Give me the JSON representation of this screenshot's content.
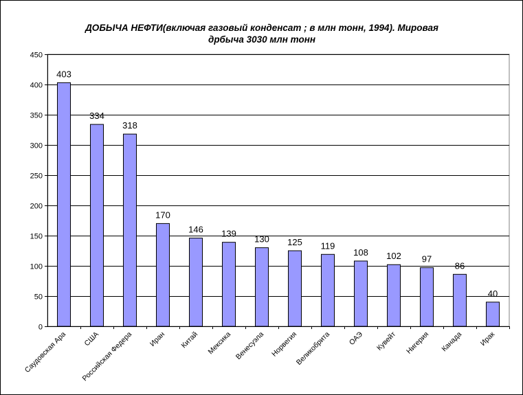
{
  "chart_data": {
    "type": "bar",
    "title": "ДОБЫЧА НЕФТИ(включая газовый конденсат ; в млн тонн, 1994). Мировая дрбыча 3030 млн тонн",
    "title_lines": [
      "ДОБЫЧА НЕФТИ(включая газовый конденсат ; в млн тонн, 1994). Мировая",
      "дрбыча 3030 млн тонн"
    ],
    "categories": [
      "Саудовская Аравия",
      "США",
      "Российская Федерация",
      "Иран",
      "Китай",
      "Мексика",
      "Венесуэла",
      "Норвегия",
      "Великобритания",
      "ОАЭ",
      "Кувейт",
      "Нигерия",
      "Канада",
      "Ирак"
    ],
    "category_labels": [
      "Саудовская Ара",
      "США",
      "Российская Федера",
      "Иран",
      "Китай",
      "Мексика",
      "Венесуэла",
      "Норвегия",
      "Великобрита",
      "ОАЭ",
      "Кувейт",
      "Нигерия",
      "Канада",
      "Ирак"
    ],
    "values": [
      403,
      334,
      318,
      170,
      146,
      139,
      130,
      125,
      119,
      108,
      102,
      97,
      86,
      40
    ],
    "ylim": [
      0,
      450
    ],
    "yticks": [
      0,
      50,
      100,
      150,
      200,
      250,
      300,
      350,
      400,
      450
    ],
    "grid": true,
    "bar_color": "#9999ff",
    "bar_edge_color": "#000000",
    "data_labels": true,
    "xlabel": "",
    "ylabel": ""
  }
}
